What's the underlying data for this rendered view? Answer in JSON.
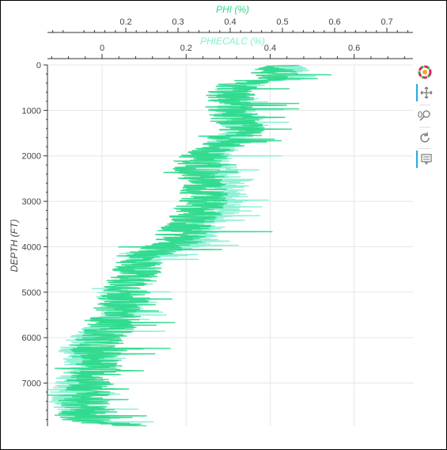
{
  "chart_data": {
    "type": "line",
    "orientation": "vertical-depth",
    "top_axis_1": {
      "label": "PHI (%)",
      "range": [
        0.05,
        0.75
      ],
      "ticks": [
        "0.2",
        "0.3",
        "0.4",
        "0.5",
        "0.6",
        "0.7"
      ],
      "tick_values": [
        0.2,
        0.3,
        0.4,
        0.5,
        0.6,
        0.7
      ],
      "color": "#2bd98a"
    },
    "top_axis_2": {
      "label": "PHIECALC (%)",
      "range": [
        -0.13,
        0.74
      ],
      "ticks": [
        "0",
        "0.2",
        "0.4",
        "0.6"
      ],
      "tick_values": [
        0,
        0.2,
        0.4,
        0.6
      ],
      "color": "#7ff0d0"
    },
    "y_axis": {
      "label": "DEPTH (FT)",
      "range": [
        0,
        7950
      ],
      "inverted": true,
      "ticks": [
        "0",
        "1000",
        "2000",
        "3000",
        "4000",
        "5000",
        "6000",
        "7000"
      ],
      "tick_values": [
        0,
        1000,
        2000,
        3000,
        4000,
        5000,
        6000,
        7000
      ]
    },
    "grid": true,
    "series": [
      {
        "name": "PHIECALC",
        "color": "#7ff0d0",
        "depth": [
          0,
          300,
          400,
          600,
          900,
          1200,
          1500,
          1800,
          2100,
          2400,
          2800,
          3200,
          3600,
          3900,
          4200,
          4600,
          5000,
          5400,
          5800,
          6200,
          6600,
          7000,
          7400,
          7800,
          7950
        ],
        "value": [
          0.45,
          0.44,
          0.36,
          0.3,
          0.31,
          0.33,
          0.33,
          0.28,
          0.26,
          0.29,
          0.3,
          0.28,
          0.24,
          0.23,
          0.1,
          0.09,
          0.03,
          0.05,
          0.0,
          -0.06,
          -0.04,
          -0.07,
          -0.08,
          -0.05,
          0.08
        ]
      },
      {
        "name": "PHI",
        "color": "#2bd98a",
        "depth": [
          0,
          300,
          400,
          600,
          900,
          1200,
          1500,
          1800,
          2100,
          2400,
          2800,
          3200,
          3600,
          3900,
          4200,
          4600,
          5000,
          5400,
          5800,
          6200,
          6600,
          7000,
          7400,
          7800,
          7950
        ],
        "value": [
          0.5,
          0.47,
          0.42,
          0.4,
          0.4,
          0.41,
          0.42,
          0.38,
          0.34,
          0.34,
          0.35,
          0.34,
          0.31,
          0.3,
          0.23,
          0.22,
          0.2,
          0.19,
          0.17,
          0.14,
          0.15,
          0.13,
          0.12,
          0.12,
          0.2
        ]
      }
    ]
  },
  "toolbar": {
    "tools": [
      "bokeh-logo-icon",
      "pan-icon",
      "wheel-zoom-icon",
      "reset-icon",
      "hover-icon"
    ]
  }
}
